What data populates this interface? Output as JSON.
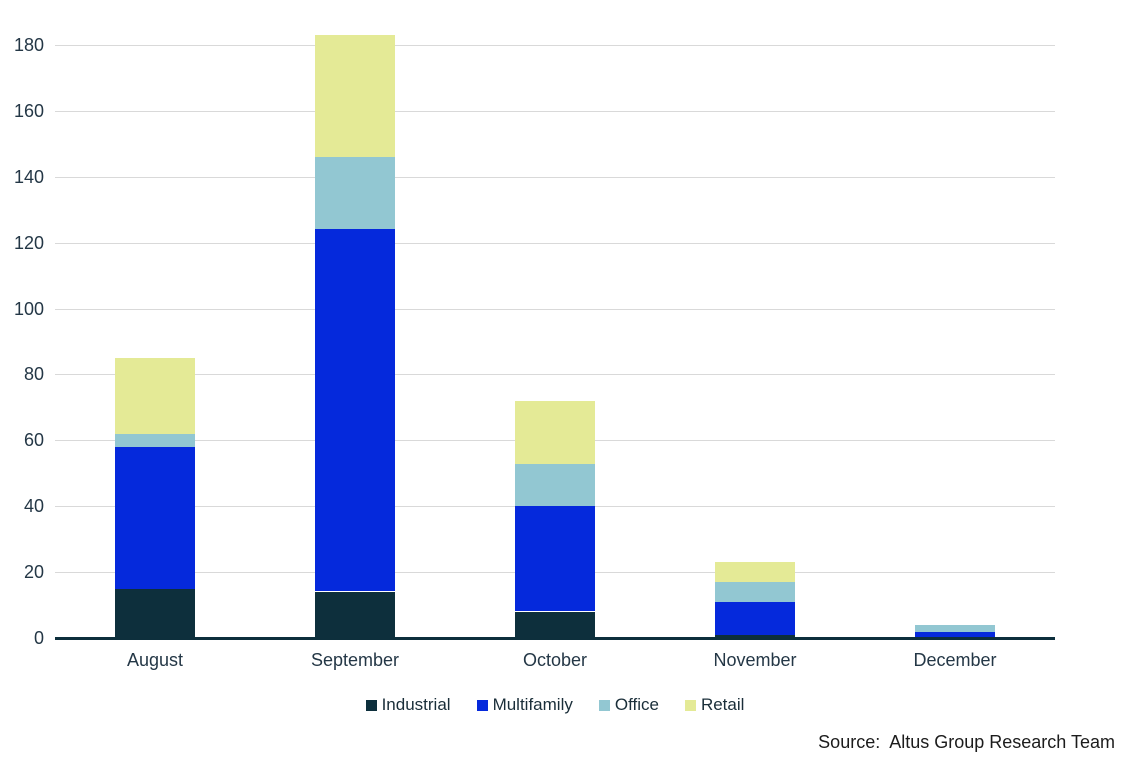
{
  "chart_data": {
    "type": "bar",
    "stacked": true,
    "title": "",
    "xlabel": "",
    "ylabel": "",
    "categories": [
      "August",
      "September",
      "October",
      "November",
      "December"
    ],
    "series": [
      {
        "name": "Industrial",
        "color": "#0d2f3c",
        "values": [
          15,
          14,
          8,
          1,
          0
        ]
      },
      {
        "name": "Multifamily",
        "color": "#0529dc",
        "values": [
          43,
          110,
          32,
          10,
          2
        ]
      },
      {
        "name": "Office",
        "color": "#92c7d2",
        "values": [
          4,
          22,
          13,
          6,
          2
        ]
      },
      {
        "name": "Retail",
        "color": "#e4ea96",
        "values": [
          23,
          37,
          19,
          6,
          0
        ]
      }
    ],
    "stack_totals": [
      85,
      183,
      72,
      23,
      4
    ],
    "yticks": [
      0,
      20,
      40,
      60,
      80,
      100,
      120,
      140,
      160,
      180
    ],
    "ylim": [
      0,
      190
    ],
    "grid": true,
    "legend_position": "bottom"
  },
  "source_note": "Source:  Altus Group Research Team",
  "colors": {
    "background": "#ffffff",
    "gridline": "#d9d9d9",
    "axis_line": "#0d2f3c",
    "tick_label": "#243746",
    "legend_text": "#1a2e39",
    "source_text": "#1c1c1c"
  }
}
